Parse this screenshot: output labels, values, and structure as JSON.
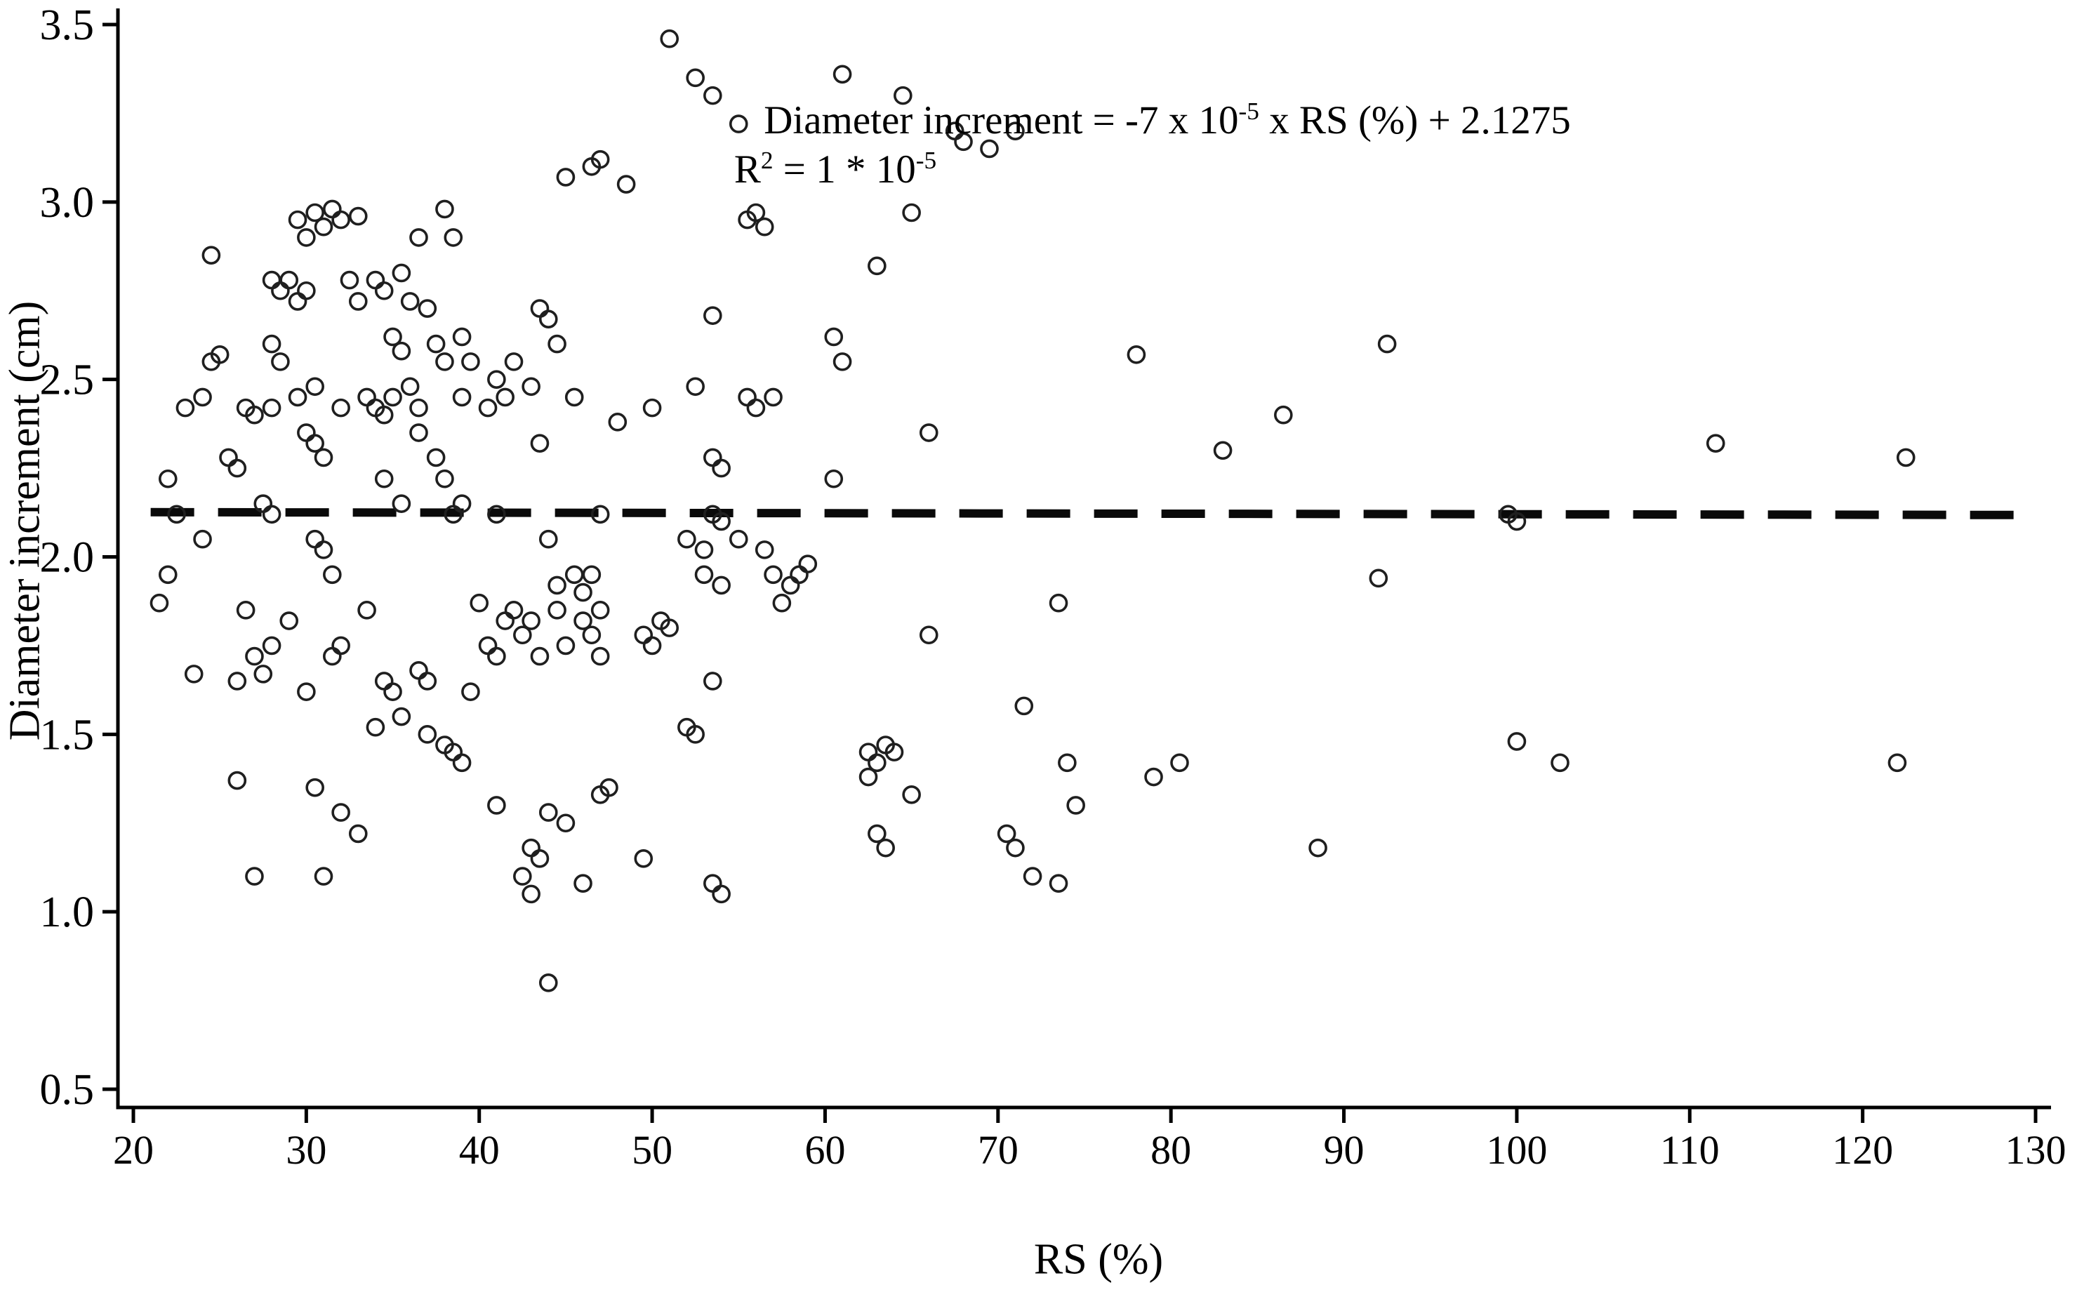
{
  "figure": {
    "background": "#ffffff"
  },
  "colors": {
    "marker_stroke": "#1f1f1f",
    "axis": "#000000",
    "trend_line": "#0a0a0a",
    "text": "#000000"
  },
  "annotation": {
    "eq_prefix": "Diameter increment = -7 x 10",
    "eq_sup1": "-5",
    "eq_suffix": " x RS (%) + 2.1275",
    "r2_base": "R",
    "r2_sup": "2",
    "r2_mid": " = 1 * 10",
    "r2_sup2": "-5"
  },
  "chart_data": {
    "type": "scatter",
    "title": "",
    "xlabel": "RS (%)",
    "ylabel": "Diameter increment (cm)",
    "xlim": [
      20,
      130
    ],
    "ylim": [
      0.5,
      3.5
    ],
    "x_ticks": [
      20,
      30,
      40,
      50,
      60,
      70,
      80,
      90,
      100,
      110,
      120,
      130
    ],
    "y_ticks": [
      0.5,
      1.0,
      1.5,
      2.0,
      2.5,
      3.0,
      3.5
    ],
    "y_tick_labels": [
      "0.5",
      "1.0",
      "1.5",
      "2.0",
      "2.5",
      "3.0",
      "3.5"
    ],
    "grid": false,
    "legend": "none",
    "marker": {
      "shape": "open-circle",
      "radius_px": 11.5,
      "stroke_px": 3.6
    },
    "trend_line": {
      "style": "dashed",
      "x1": 21,
      "y1": 2.126,
      "x2": 129.8,
      "y2": 2.118,
      "equation": "Diameter increment = -7 x 10^-5 x RS (%) + 2.1275",
      "r_squared": "1 * 10^-5"
    },
    "points": [
      [
        51,
        3.46
      ],
      [
        52.5,
        3.35
      ],
      [
        53.5,
        3.3
      ],
      [
        55,
        3.22
      ],
      [
        61,
        3.36
      ],
      [
        64.5,
        3.3
      ],
      [
        67.5,
        3.2
      ],
      [
        68,
        3.17
      ],
      [
        69.5,
        3.15
      ],
      [
        71,
        3.2
      ],
      [
        45,
        3.07
      ],
      [
        46.5,
        3.1
      ],
      [
        47,
        3.12
      ],
      [
        48.5,
        3.05
      ],
      [
        24.5,
        2.85
      ],
      [
        29.5,
        2.95
      ],
      [
        30,
        2.9
      ],
      [
        30.5,
        2.97
      ],
      [
        31,
        2.93
      ],
      [
        31.5,
        2.98
      ],
      [
        32,
        2.95
      ],
      [
        33,
        2.96
      ],
      [
        36.5,
        2.9
      ],
      [
        38,
        2.98
      ],
      [
        38.5,
        2.9
      ],
      [
        55.5,
        2.95
      ],
      [
        56,
        2.97
      ],
      [
        56.5,
        2.93
      ],
      [
        63,
        2.82
      ],
      [
        65,
        2.97
      ],
      [
        28,
        2.78
      ],
      [
        28.5,
        2.75
      ],
      [
        29,
        2.78
      ],
      [
        29.5,
        2.72
      ],
      [
        30,
        2.75
      ],
      [
        32.5,
        2.78
      ],
      [
        33,
        2.72
      ],
      [
        34,
        2.78
      ],
      [
        34.5,
        2.75
      ],
      [
        35.5,
        2.8
      ],
      [
        36,
        2.72
      ],
      [
        37,
        2.7
      ],
      [
        43.5,
        2.7
      ],
      [
        44,
        2.67
      ],
      [
        53.5,
        2.68
      ],
      [
        24.5,
        2.55
      ],
      [
        25,
        2.57
      ],
      [
        28,
        2.6
      ],
      [
        28.5,
        2.55
      ],
      [
        35,
        2.62
      ],
      [
        35.5,
        2.58
      ],
      [
        37.5,
        2.6
      ],
      [
        38,
        2.55
      ],
      [
        39,
        2.62
      ],
      [
        39.5,
        2.55
      ],
      [
        41,
        2.5
      ],
      [
        42,
        2.55
      ],
      [
        44.5,
        2.6
      ],
      [
        60.5,
        2.62
      ],
      [
        61,
        2.55
      ],
      [
        78,
        2.57
      ],
      [
        92.5,
        2.6
      ],
      [
        23,
        2.42
      ],
      [
        24,
        2.45
      ],
      [
        26.5,
        2.42
      ],
      [
        27,
        2.4
      ],
      [
        28,
        2.42
      ],
      [
        29.5,
        2.45
      ],
      [
        30.5,
        2.48
      ],
      [
        32,
        2.42
      ],
      [
        33.5,
        2.45
      ],
      [
        34,
        2.42
      ],
      [
        34.5,
        2.4
      ],
      [
        35,
        2.45
      ],
      [
        36,
        2.48
      ],
      [
        36.5,
        2.42
      ],
      [
        39,
        2.45
      ],
      [
        40.5,
        2.42
      ],
      [
        41.5,
        2.45
      ],
      [
        43,
        2.48
      ],
      [
        45.5,
        2.45
      ],
      [
        50,
        2.42
      ],
      [
        52.5,
        2.48
      ],
      [
        55.5,
        2.45
      ],
      [
        56,
        2.42
      ],
      [
        57,
        2.45
      ],
      [
        86.5,
        2.4
      ],
      [
        111.5,
        2.32
      ],
      [
        122.5,
        2.28
      ],
      [
        30,
        2.35
      ],
      [
        30.5,
        2.32
      ],
      [
        36.5,
        2.35
      ],
      [
        43.5,
        2.32
      ],
      [
        48,
        2.38
      ],
      [
        66,
        2.35
      ],
      [
        83,
        2.3
      ],
      [
        22,
        2.22
      ],
      [
        25.5,
        2.28
      ],
      [
        26,
        2.25
      ],
      [
        31,
        2.28
      ],
      [
        34.5,
        2.22
      ],
      [
        37.5,
        2.28
      ],
      [
        38,
        2.22
      ],
      [
        53.5,
        2.28
      ],
      [
        54,
        2.25
      ],
      [
        60.5,
        2.22
      ],
      [
        22.5,
        2.12
      ],
      [
        27.5,
        2.15
      ],
      [
        28,
        2.12
      ],
      [
        35.5,
        2.15
      ],
      [
        38.5,
        2.12
      ],
      [
        39,
        2.15
      ],
      [
        41,
        2.12
      ],
      [
        47,
        2.12
      ],
      [
        53.5,
        2.12
      ],
      [
        54,
        2.1
      ],
      [
        99.5,
        2.12
      ],
      [
        100,
        2.1
      ],
      [
        24,
        2.05
      ],
      [
        30.5,
        2.05
      ],
      [
        31,
        2.02
      ],
      [
        44,
        2.05
      ],
      [
        52,
        2.05
      ],
      [
        53,
        2.02
      ],
      [
        55,
        2.05
      ],
      [
        56.5,
        2.02
      ],
      [
        22,
        1.95
      ],
      [
        31.5,
        1.95
      ],
      [
        44.5,
        1.92
      ],
      [
        45.5,
        1.95
      ],
      [
        46,
        1.9
      ],
      [
        46.5,
        1.95
      ],
      [
        53,
        1.95
      ],
      [
        54,
        1.92
      ],
      [
        57,
        1.95
      ],
      [
        58,
        1.92
      ],
      [
        58.5,
        1.95
      ],
      [
        59,
        1.98
      ],
      [
        92,
        1.94
      ],
      [
        21.5,
        1.87
      ],
      [
        26.5,
        1.85
      ],
      [
        29,
        1.82
      ],
      [
        33.5,
        1.85
      ],
      [
        40,
        1.87
      ],
      [
        41.5,
        1.82
      ],
      [
        42,
        1.85
      ],
      [
        43,
        1.82
      ],
      [
        44.5,
        1.85
      ],
      [
        46,
        1.82
      ],
      [
        47,
        1.85
      ],
      [
        50.5,
        1.82
      ],
      [
        51,
        1.8
      ],
      [
        57.5,
        1.87
      ],
      [
        73.5,
        1.87
      ],
      [
        27,
        1.72
      ],
      [
        28,
        1.75
      ],
      [
        31.5,
        1.72
      ],
      [
        32,
        1.75
      ],
      [
        40.5,
        1.75
      ],
      [
        41,
        1.72
      ],
      [
        42.5,
        1.78
      ],
      [
        43.5,
        1.72
      ],
      [
        45,
        1.75
      ],
      [
        46.5,
        1.78
      ],
      [
        47,
        1.72
      ],
      [
        49.5,
        1.78
      ],
      [
        50,
        1.75
      ],
      [
        66,
        1.78
      ],
      [
        23.5,
        1.67
      ],
      [
        26,
        1.65
      ],
      [
        27.5,
        1.67
      ],
      [
        30,
        1.62
      ],
      [
        34.5,
        1.65
      ],
      [
        35,
        1.62
      ],
      [
        36.5,
        1.68
      ],
      [
        37,
        1.65
      ],
      [
        39.5,
        1.62
      ],
      [
        53.5,
        1.65
      ],
      [
        71.5,
        1.58
      ],
      [
        34,
        1.52
      ],
      [
        35.5,
        1.55
      ],
      [
        37,
        1.5
      ],
      [
        38,
        1.47
      ],
      [
        52,
        1.52
      ],
      [
        52.5,
        1.5
      ],
      [
        100,
        1.48
      ],
      [
        38.5,
        1.45
      ],
      [
        39,
        1.42
      ],
      [
        62.5,
        1.45
      ],
      [
        63,
        1.42
      ],
      [
        63.5,
        1.47
      ],
      [
        64,
        1.45
      ],
      [
        74,
        1.42
      ],
      [
        79,
        1.38
      ],
      [
        80.5,
        1.42
      ],
      [
        102.5,
        1.42
      ],
      [
        122,
        1.42
      ],
      [
        26,
        1.37
      ],
      [
        30.5,
        1.35
      ],
      [
        41,
        1.3
      ],
      [
        44,
        1.28
      ],
      [
        45,
        1.25
      ],
      [
        47,
        1.33
      ],
      [
        47.5,
        1.35
      ],
      [
        62.5,
        1.38
      ],
      [
        65,
        1.33
      ],
      [
        74.5,
        1.3
      ],
      [
        32,
        1.28
      ],
      [
        33,
        1.22
      ],
      [
        43,
        1.18
      ],
      [
        43.5,
        1.15
      ],
      [
        49.5,
        1.15
      ],
      [
        63,
        1.22
      ],
      [
        63.5,
        1.18
      ],
      [
        70.5,
        1.22
      ],
      [
        71,
        1.18
      ],
      [
        88.5,
        1.18
      ],
      [
        27,
        1.1
      ],
      [
        31,
        1.1
      ],
      [
        42.5,
        1.1
      ],
      [
        43,
        1.05
      ],
      [
        46,
        1.08
      ],
      [
        53.5,
        1.08
      ],
      [
        54,
        1.05
      ],
      [
        72,
        1.1
      ],
      [
        73.5,
        1.08
      ],
      [
        44,
        0.8
      ]
    ]
  }
}
